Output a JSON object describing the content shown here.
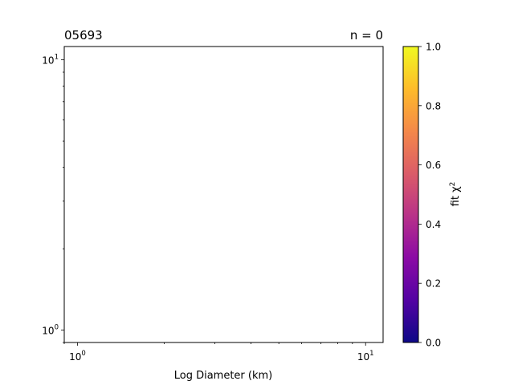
{
  "chart_data": {
    "type": "scatter",
    "title_left": "05693",
    "title_right": "n = 0",
    "xlabel": "Log Diameter (km)",
    "ylabel": "",
    "x_scale": "log",
    "y_scale": "log",
    "xlim": [
      0.9,
      11.5
    ],
    "ylim": [
      0.9,
      11.2
    ],
    "x_major_ticks": [
      1,
      10
    ],
    "x_major_tick_labels": [
      "10^0",
      "10^1"
    ],
    "y_major_ticks": [
      1,
      10
    ],
    "y_major_tick_labels": [
      "10^0",
      "10^1"
    ],
    "grid": false,
    "points": [],
    "colorbar": {
      "label": "fit χ^2",
      "colormap": "plasma",
      "range": [
        0.0,
        1.0
      ],
      "tick_values": [
        0.0,
        0.2,
        0.4,
        0.6,
        0.8,
        1.0
      ],
      "tick_labels": [
        "0.0",
        "0.2",
        "0.4",
        "0.6",
        "0.8",
        "1.0"
      ],
      "colormap_stops": [
        "#0d0887",
        "#5302a3",
        "#8b0aa5",
        "#b83289",
        "#db5c68",
        "#f48849",
        "#febc2a",
        "#f0f921"
      ]
    }
  }
}
